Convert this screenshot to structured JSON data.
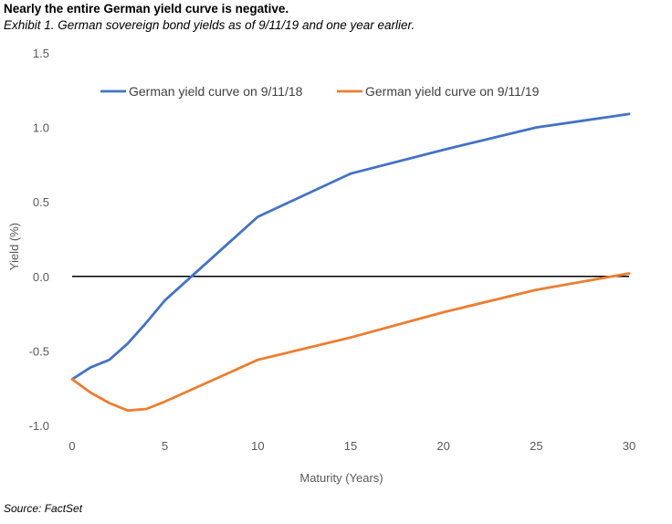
{
  "title": "Nearly the entire German yield curve is negative.",
  "subtitle": "Exhibit 1. German sovereign bond yields as of 9/11/19 and one year earlier.",
  "source": "Source: FactSet",
  "chart_data": {
    "type": "line",
    "xlabel": "Maturity (Years)",
    "ylabel": "Yield (%)",
    "xlim": [
      0,
      30
    ],
    "ylim": [
      -1.0,
      1.5
    ],
    "x_ticks": [
      0,
      5,
      10,
      15,
      20,
      25,
      30
    ],
    "x_tick_labels": [
      "0",
      "5",
      "10",
      "15",
      "20",
      "25",
      "30"
    ],
    "y_ticks": [
      -1.0,
      -0.5,
      0.0,
      0.5,
      1.0,
      1.5
    ],
    "y_tick_labels": [
      "-1.0",
      "-0.5",
      "0.0",
      "0.5",
      "1.0",
      "1.5"
    ],
    "grid": false,
    "zero_line": true,
    "legend_position": "top",
    "series": [
      {
        "name": "German yield curve on 9/11/18",
        "color": "#4472C4",
        "x": [
          0,
          1,
          2,
          3,
          4,
          5,
          10,
          15,
          20,
          25,
          30
        ],
        "y": [
          -0.69,
          -0.61,
          -0.56,
          -0.45,
          -0.31,
          -0.16,
          0.4,
          0.69,
          0.85,
          1.0,
          1.09
        ]
      },
      {
        "name": "German yield curve on 9/11/19",
        "color": "#ED7D31",
        "x": [
          0,
          1,
          2,
          3,
          4,
          5,
          10,
          15,
          20,
          25,
          30
        ],
        "y": [
          -0.69,
          -0.78,
          -0.85,
          -0.9,
          -0.89,
          -0.84,
          -0.56,
          -0.41,
          -0.24,
          -0.09,
          0.02
        ]
      }
    ]
  }
}
